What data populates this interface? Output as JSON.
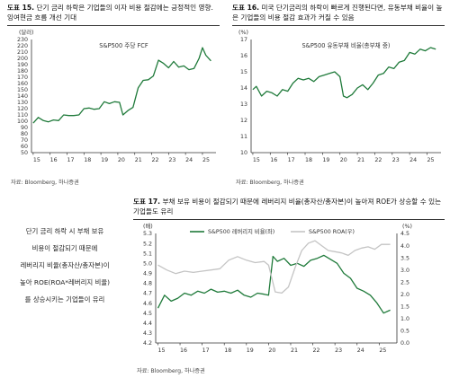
{
  "panels": [
    {
      "title_num": "도표 15.",
      "title_text": "단기 금리 하락은 기업들의 이자 비용 절감에는 긍정적인 영향. 잉여현금 흐름 개선 기대",
      "source": "자료: Bloomberg, 하나증권"
    },
    {
      "title_num": "도표 16.",
      "title_text": "미국 단기금리의 하락이 빠르게 진행된다면, 유동부채 비율이 높은 기업들의 비용 절감 효과가 커질 수 있음",
      "source": "자료: Bloomberg, 하나증권"
    },
    {
      "title_num": "도표 17.",
      "title_text": "부채 보유 비용이 절감되기 때문에 레버리지 비율(총자산/총자본)이 높아져 ROE가 상승할 수 있는 기업들도 유리",
      "source": "자료: Bloomberg, 하나증권"
    }
  ],
  "side_note": {
    "lines": [
      "단기 금리 하락 시 부채 보유",
      "비용이 절감되기 때문에",
      "레버리지 비율(총자산/총자본)이",
      "높아 ROE(ROA*레버리지 비율)",
      "를 상승시키는 기업들이 유리"
    ]
  },
  "colors": {
    "green": "#1f7a3a",
    "gray": "#c4c4c4",
    "axis": "#333333"
  },
  "chart_data": [
    {
      "type": "line",
      "title": "S&P500 주당 FCF",
      "ylabel": "(달러)",
      "xlim": [
        2014.9,
        2025.8
      ],
      "ylim": [
        50,
        230
      ],
      "yticks": [
        50,
        60,
        70,
        80,
        90,
        100,
        110,
        120,
        130,
        140,
        150,
        160,
        170,
        180,
        190,
        200,
        210,
        220,
        230
      ],
      "xticks": [
        15,
        16,
        17,
        18,
        19,
        20,
        21,
        22,
        23,
        24,
        25
      ],
      "series": [
        {
          "name": "S&P500 주당 FCF",
          "color": "#1f7a3a",
          "x": [
            2015.0,
            2015.3,
            2015.6,
            2015.9,
            2016.2,
            2016.5,
            2016.8,
            2017.1,
            2017.4,
            2017.7,
            2018.0,
            2018.3,
            2018.6,
            2018.9,
            2019.2,
            2019.5,
            2019.8,
            2020.1,
            2020.3,
            2020.6,
            2020.9,
            2021.2,
            2021.5,
            2021.8,
            2022.1,
            2022.4,
            2022.7,
            2023.0,
            2023.3,
            2023.6,
            2023.9,
            2024.2,
            2024.5,
            2024.8,
            2025.0,
            2025.2,
            2025.5
          ],
          "y": [
            97,
            106,
            101,
            99,
            102,
            101,
            110,
            109,
            109,
            110,
            120,
            121,
            119,
            120,
            131,
            128,
            131,
            130,
            110,
            117,
            122,
            153,
            165,
            166,
            172,
            197,
            192,
            185,
            195,
            186,
            188,
            182,
            184,
            200,
            217,
            205,
            196
          ]
        }
      ]
    },
    {
      "type": "line",
      "title": "S&P500 유동부채 비율(총부채 중)",
      "ylabel": "(%)",
      "xlim": [
        2014.9,
        2025.8
      ],
      "ylim": [
        10,
        17
      ],
      "yticks": [
        10,
        11,
        12,
        13,
        14,
        15,
        16,
        17
      ],
      "xticks": [
        15,
        16,
        17,
        18,
        19,
        20,
        21,
        22,
        23,
        24,
        25
      ],
      "series": [
        {
          "name": "S&P500 유동부채 비율(총부채 중)",
          "color": "#1f7a3a",
          "x": [
            2015.0,
            2015.2,
            2015.5,
            2015.8,
            2016.1,
            2016.4,
            2016.7,
            2017.0,
            2017.3,
            2017.6,
            2017.9,
            2018.2,
            2018.5,
            2018.8,
            2019.1,
            2019.4,
            2019.7,
            2020.0,
            2020.2,
            2020.4,
            2020.7,
            2021.0,
            2021.3,
            2021.6,
            2021.9,
            2022.2,
            2022.5,
            2022.8,
            2023.1,
            2023.4,
            2023.7,
            2024.0,
            2024.3,
            2024.6,
            2024.9,
            2025.2,
            2025.5
          ],
          "y": [
            13.9,
            14.1,
            13.5,
            13.8,
            13.7,
            13.5,
            13.9,
            13.8,
            14.3,
            14.6,
            14.5,
            14.6,
            14.4,
            14.7,
            14.8,
            14.9,
            15.0,
            14.7,
            13.5,
            13.4,
            13.6,
            14.0,
            14.2,
            13.9,
            14.3,
            14.8,
            14.9,
            15.3,
            15.2,
            15.6,
            15.7,
            16.2,
            16.1,
            16.4,
            16.3,
            16.5,
            16.4
          ]
        }
      ]
    },
    {
      "type": "line",
      "title": "",
      "ylabel": "(배)",
      "ylabel_right": "(%)",
      "xlim": [
        2014.9,
        2025.8
      ],
      "ylim": [
        4.2,
        5.3
      ],
      "ylim_right": [
        0,
        4.5
      ],
      "yticks": [
        4.2,
        4.3,
        4.4,
        4.5,
        4.6,
        4.7,
        4.8,
        4.9,
        5.0,
        5.1,
        5.2,
        5.3
      ],
      "yticks_right": [
        0,
        0.5,
        1.0,
        1.5,
        2.0,
        2.5,
        3.0,
        3.5,
        4.0,
        4.5
      ],
      "xticks": [
        15,
        16,
        17,
        18,
        19,
        20,
        21,
        22,
        23,
        24,
        25
      ],
      "legend": "top",
      "series": [
        {
          "name": "S&P500 레버리지 비율(좌)",
          "axis": "left",
          "color": "#1f7a3a",
          "x": [
            2015.0,
            2015.3,
            2015.6,
            2015.9,
            2016.2,
            2016.5,
            2016.8,
            2017.1,
            2017.4,
            2017.7,
            2018.0,
            2018.3,
            2018.6,
            2018.9,
            2019.2,
            2019.5,
            2019.8,
            2020.0,
            2020.2,
            2020.4,
            2020.7,
            2021.0,
            2021.3,
            2021.6,
            2021.9,
            2022.2,
            2022.5,
            2022.8,
            2023.1,
            2023.4,
            2023.7,
            2024.0,
            2024.3,
            2024.6,
            2024.9,
            2025.2,
            2025.5
          ],
          "y": [
            4.55,
            4.68,
            4.62,
            4.65,
            4.7,
            4.68,
            4.72,
            4.7,
            4.74,
            4.71,
            4.72,
            4.7,
            4.73,
            4.68,
            4.66,
            4.7,
            4.69,
            4.68,
            5.07,
            5.02,
            5.05,
            4.98,
            5.0,
            4.97,
            5.03,
            5.05,
            5.08,
            5.04,
            5.0,
            4.9,
            4.85,
            4.75,
            4.72,
            4.68,
            4.6,
            4.5,
            4.53
          ]
        },
        {
          "name": "S&P500 ROA(우)",
          "axis": "right",
          "color": "#c4c4c4",
          "x": [
            2015.0,
            2015.4,
            2015.8,
            2016.2,
            2016.6,
            2017.0,
            2017.4,
            2017.8,
            2018.2,
            2018.6,
            2019.0,
            2019.4,
            2019.8,
            2020.0,
            2020.3,
            2020.6,
            2020.9,
            2021.2,
            2021.5,
            2021.8,
            2022.1,
            2022.4,
            2022.7,
            2023.0,
            2023.3,
            2023.6,
            2023.9,
            2024.2,
            2024.5,
            2024.8,
            2025.1,
            2025.5
          ],
          "y": [
            3.2,
            3.0,
            2.85,
            2.95,
            2.9,
            2.95,
            3.0,
            3.05,
            3.4,
            3.55,
            3.4,
            3.3,
            3.35,
            3.2,
            2.1,
            2.05,
            2.3,
            3.1,
            3.8,
            4.1,
            4.2,
            4.0,
            3.8,
            3.75,
            3.7,
            3.6,
            3.8,
            3.9,
            3.95,
            3.85,
            4.05,
            4.05
          ]
        }
      ]
    }
  ]
}
